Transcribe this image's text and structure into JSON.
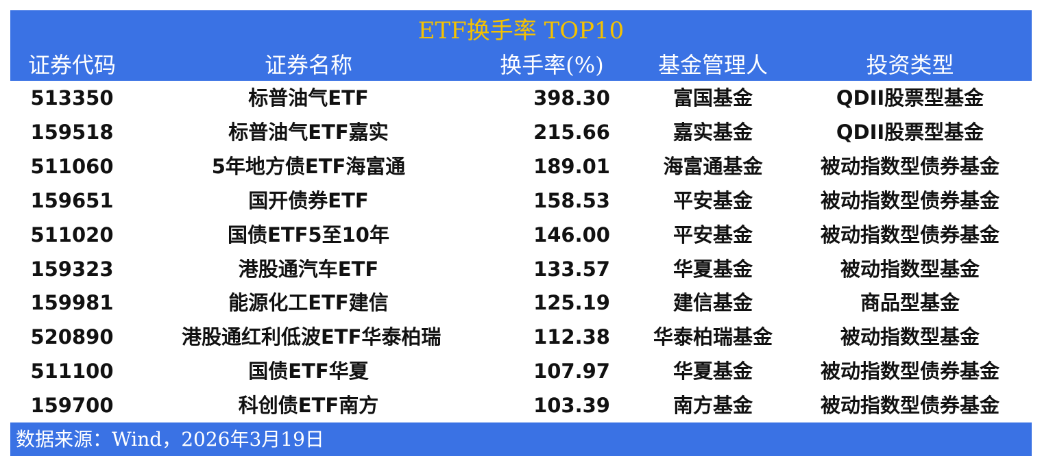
{
  "title": "ETF换手率 TOP10",
  "columns": [
    "证券代码",
    "证券名称",
    "换手率(%)",
    "基金管理人",
    "投资类型"
  ],
  "rows": [
    [
      "513350",
      "标普油气ETF",
      "398.30",
      "富国基金",
      "QDII股票型基金"
    ],
    [
      "159518",
      "标普油气ETF嘉实",
      "215.66",
      "嘉实基金",
      "QDII股票型基金"
    ],
    [
      "511060",
      "5年地方债ETF海富通",
      "189.01",
      "海富通基金",
      "被动指数型债券基金"
    ],
    [
      "159651",
      "国开债券ETF",
      "158.53",
      "平安基金",
      "被动指数型债券基金"
    ],
    [
      "511020",
      "国债ETF5至10年",
      "146.00",
      "平安基金",
      "被动指数型债券基金"
    ],
    [
      "159323",
      "港股通汽车ETF",
      "133.57",
      "华夏基金",
      "被动指数型基金"
    ],
    [
      "159981",
      "能源化工ETF建信",
      "125.19",
      "建信基金",
      "商品型基金"
    ],
    [
      "520890",
      "港股通红利低波ETF华泰柏瑞",
      "112.38",
      "华泰柏瑞基金",
      "被动指数型基金"
    ],
    [
      "511100",
      "国债ETF华夏",
      "107.97",
      "华夏基金",
      "被动指数型债券基金"
    ],
    [
      "159700",
      "科创债ETF南方",
      "103.39",
      "南方基金",
      "被动指数型债券基金"
    ]
  ],
  "footer": "数据来源：Wind，2026年3月19日",
  "colors": {
    "banner": "#3a72e4",
    "title": "#f5c200",
    "header_text": "#ffffff"
  }
}
